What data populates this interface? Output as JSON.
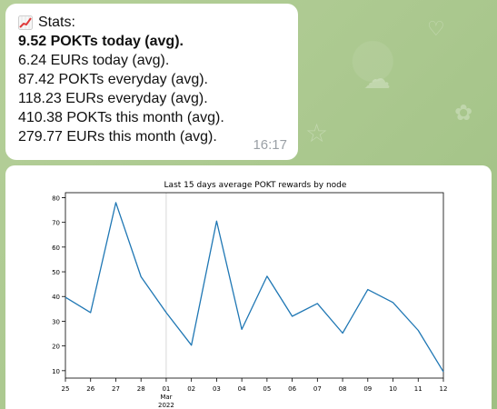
{
  "message": {
    "title": "Stats:",
    "lines": [
      "9.52 POKTs today (avg).",
      "6.24 EURs today (avg).",
      "87.42 POKTs everyday (avg).",
      "118.23 EURs everyday (avg).",
      "410.38 POKTs this month (avg).",
      "279.77 EURs this month (avg)."
    ],
    "time": "16:17"
  },
  "colors": {
    "chat_background": "#a9c68e",
    "bubble": "#ffffff",
    "series_line": "#1f77b4"
  },
  "chart_data": {
    "type": "line",
    "title": "Last 15 days average POKT rewards by node",
    "x": [
      "25",
      "26",
      "27",
      "28",
      "01\nMar\n2022",
      "02",
      "03",
      "04",
      "05",
      "06",
      "07",
      "08",
      "09",
      "10",
      "11",
      "12"
    ],
    "x_tick_labels": [
      "25",
      "26",
      "27",
      "28",
      "01",
      "02",
      "03",
      "04",
      "05",
      "06",
      "07",
      "08",
      "09",
      "10",
      "11",
      "12"
    ],
    "x_tick_sublabels": {
      "01": [
        "Mar",
        "2022"
      ]
    },
    "values": [
      39.7,
      33.5,
      78,
      48,
      33.5,
      20.3,
      70.5,
      26.7,
      48.2,
      32,
      37.2,
      25.2,
      42.8,
      37.6,
      26.3,
      9.52
    ],
    "ylim": [
      7,
      82
    ],
    "y_ticks": [
      10,
      20,
      30,
      40,
      50,
      60,
      70,
      80
    ],
    "grid": "x only at month boundary",
    "xlabel": "",
    "ylabel": ""
  }
}
